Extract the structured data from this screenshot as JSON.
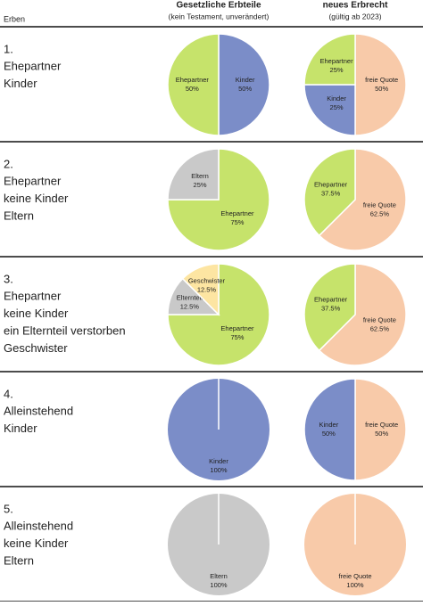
{
  "header": {
    "col0": "Erben",
    "col1_title": "Gesetzliche Erbteile",
    "col1_sub": "(kein Testament, unverändert)",
    "col2_title": "neues Erbrecht",
    "col2_sub": "(gültig ab 2023)"
  },
  "rows": [
    {
      "number": "1.",
      "lines": [
        "Ehepartner",
        "Kinder"
      ],
      "pies": [
        {
          "slices": [
            {
              "name": "Kinder",
              "value": 50,
              "value_label": "50%",
              "color": "#7b8dc8"
            },
            {
              "name": "Ehepartner",
              "value": 50,
              "value_label": "50%",
              "color": "#c6e36b"
            }
          ]
        },
        {
          "slices": [
            {
              "name": "freie Quote",
              "value": 50,
              "value_label": "50%",
              "color": "#f8caa9"
            },
            {
              "name": "Kinder",
              "value": 25,
              "value_label": "25%",
              "color": "#7b8dc8"
            },
            {
              "name": "Ehepartner",
              "value": 25,
              "value_label": "25%",
              "color": "#c6e36b"
            }
          ]
        }
      ]
    },
    {
      "number": "2.",
      "lines": [
        "Ehepartner",
        "keine Kinder",
        "Eltern"
      ],
      "pies": [
        {
          "slices": [
            {
              "name": "Ehepartner",
              "value": 75,
              "value_label": "75%",
              "color": "#c6e36b"
            },
            {
              "name": "Eltern",
              "value": 25,
              "value_label": "25%",
              "color": "#c9c9c9"
            }
          ]
        },
        {
          "slices": [
            {
              "name": "freie Quote",
              "value": 62.5,
              "value_label": "62.5%",
              "color": "#f8caa9"
            },
            {
              "name": "Ehepartner",
              "value": 37.5,
              "value_label": "37.5%",
              "color": "#c6e36b"
            }
          ]
        }
      ]
    },
    {
      "number": "3.",
      "lines": [
        "Ehepartner",
        "keine Kinder",
        "ein Elternteil verstorben",
        "Geschwister"
      ],
      "pies": [
        {
          "slices": [
            {
              "name": "Ehepartner",
              "value": 75,
              "value_label": "75%",
              "color": "#c6e36b"
            },
            {
              "name": "Elternteil",
              "value": 12.5,
              "value_label": "12.5%",
              "color": "#c9c9c9"
            },
            {
              "name": "Geschwister",
              "value": 12.5,
              "value_label": "12.5%",
              "color": "#fde5a2"
            }
          ]
        },
        {
          "slices": [
            {
              "name": "freie Quote",
              "value": 62.5,
              "value_label": "62.5%",
              "color": "#f8caa9"
            },
            {
              "name": "Ehepartner",
              "value": 37.5,
              "value_label": "37.5%",
              "color": "#c6e36b"
            }
          ]
        }
      ]
    },
    {
      "number": "4.",
      "lines": [
        "Alleinstehend",
        "Kinder"
      ],
      "pies": [
        {
          "slices": [
            {
              "name": "Kinder",
              "value": 100,
              "value_label": "100%",
              "color": "#7b8dc8"
            }
          ]
        },
        {
          "slices": [
            {
              "name": "freie Quote",
              "value": 50,
              "value_label": "50%",
              "color": "#f8caa9"
            },
            {
              "name": "Kinder",
              "value": 50,
              "value_label": "50%",
              "color": "#7b8dc8"
            }
          ]
        }
      ]
    },
    {
      "number": "5.",
      "lines": [
        "Alleinstehend",
        "keine Kinder",
        "Eltern"
      ],
      "pies": [
        {
          "slices": [
            {
              "name": "Eltern",
              "value": 100,
              "value_label": "100%",
              "color": "#c9c9c9"
            }
          ]
        },
        {
          "slices": [
            {
              "name": "freie Quote",
              "value": 100,
              "value_label": "100%",
              "color": "#f8caa9"
            }
          ]
        }
      ]
    }
  ]
}
